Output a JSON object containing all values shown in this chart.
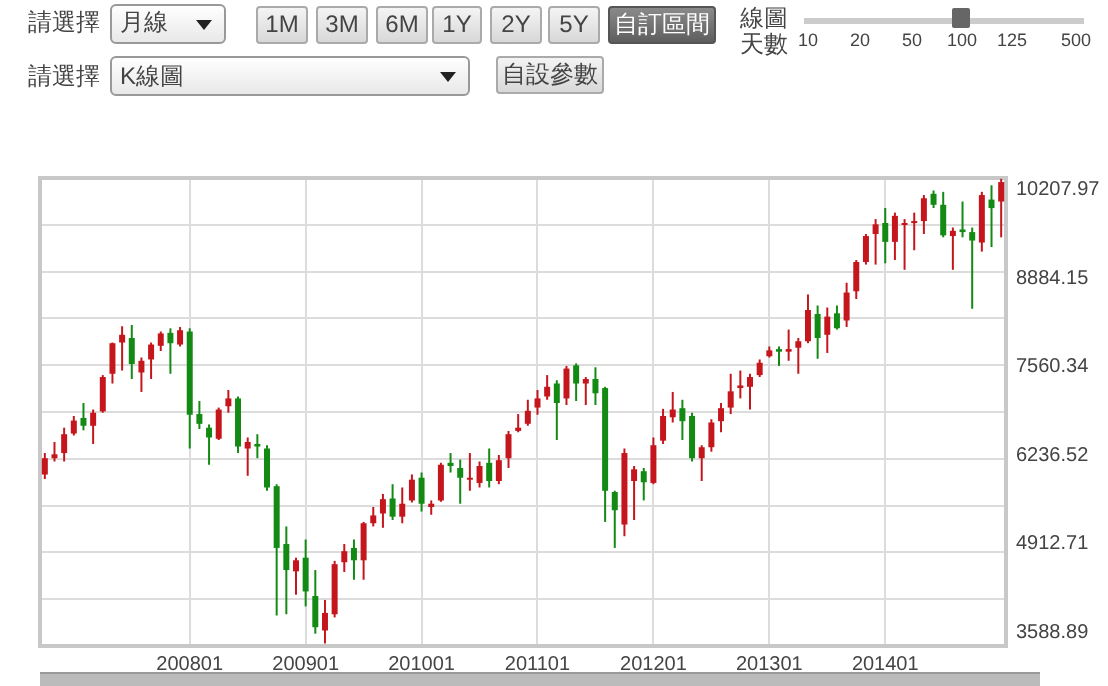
{
  "chart_data": {
    "type": "candlestick",
    "categories": [
      null,
      null,
      null,
      null,
      null,
      null,
      null,
      null,
      null,
      null,
      null,
      null,
      null,
      null,
      null,
      "200801",
      null,
      null,
      null,
      null,
      null,
      null,
      null,
      null,
      null,
      null,
      null,
      "200901",
      null,
      null,
      null,
      null,
      null,
      null,
      null,
      null,
      null,
      null,
      null,
      "201001",
      null,
      null,
      null,
      null,
      null,
      null,
      null,
      null,
      null,
      null,
      null,
      "201101",
      null,
      null,
      null,
      null,
      null,
      null,
      null,
      null,
      null,
      null,
      null,
      "201201",
      null,
      null,
      null,
      null,
      null,
      null,
      null,
      null,
      null,
      null,
      null,
      "201301",
      null,
      null,
      null,
      null,
      null,
      null,
      null,
      null,
      null,
      null,
      null,
      "201401",
      null,
      null,
      null,
      null,
      null,
      null,
      null,
      null,
      null,
      null,
      null,
      null
    ],
    "ohlc": [
      [
        5950,
        6271,
        5882,
        6194
      ],
      [
        6194,
        6436,
        6145,
        6252
      ],
      [
        6271,
        6650,
        6145,
        6553
      ],
      [
        6563,
        6825,
        6534,
        6757
      ],
      [
        6796,
        7019,
        6611,
        6679
      ],
      [
        6679,
        6922,
        6407,
        6874
      ],
      [
        6893,
        7437,
        6874,
        7408
      ],
      [
        7457,
        7924,
        7311,
        7914
      ],
      [
        7924,
        8167,
        7505,
        8040
      ],
      [
        7992,
        8186,
        7379,
        7603
      ],
      [
        7476,
        7700,
        7185,
        7651
      ],
      [
        7671,
        7924,
        7379,
        7894
      ],
      [
        7875,
        8089,
        7797,
        8060
      ],
      [
        8069,
        8137,
        7457,
        7914
      ],
      [
        7894,
        8157,
        7865,
        8108
      ],
      [
        8089,
        8137,
        6339,
        6844
      ],
      [
        6854,
        7049,
        6631,
        6708
      ],
      [
        6650,
        6699,
        6096,
        6504
      ],
      [
        6485,
        6951,
        6466,
        6922
      ],
      [
        6971,
        7214,
        6874,
        7088
      ],
      [
        7088,
        7117,
        6271,
        6368
      ],
      [
        6339,
        6504,
        5931,
        6436
      ],
      [
        6407,
        6553,
        6194,
        6368
      ],
      [
        6339,
        6388,
        5707,
        5756
      ],
      [
        5775,
        5805,
        3841,
        4852
      ],
      [
        4910,
        5173,
        3860,
        4521
      ],
      [
        4502,
        4706,
        4152,
        4667
      ],
      [
        4706,
        4978,
        3977,
        4201
      ],
      [
        4133,
        4521,
        3569,
        3666
      ],
      [
        3617,
        4074,
        3423,
        3880
      ],
      [
        3860,
        4658,
        3812,
        4609
      ],
      [
        4638,
        4910,
        4492,
        4803
      ],
      [
        4852,
        4978,
        4376,
        4667
      ],
      [
        4667,
        5241,
        4376,
        5221
      ],
      [
        5221,
        5464,
        5173,
        5338
      ],
      [
        5367,
        5659,
        5153,
        5581
      ],
      [
        5591,
        5805,
        5270,
        5319
      ],
      [
        5319,
        5756,
        5221,
        5513
      ],
      [
        5562,
        5951,
        5532,
        5873
      ],
      [
        5902,
        5980,
        5396,
        5513
      ],
      [
        5464,
        5562,
        5348,
        5513
      ],
      [
        5562,
        6125,
        5542,
        6096
      ],
      [
        6125,
        6271,
        5980,
        6077
      ],
      [
        6048,
        6174,
        5513,
        5902
      ],
      [
        5873,
        6271,
        5707,
        5902
      ],
      [
        5824,
        6145,
        5756,
        6077
      ],
      [
        6125,
        6339,
        5756,
        5853
      ],
      [
        5853,
        6242,
        5805,
        6164
      ],
      [
        6194,
        6602,
        6048,
        6553
      ],
      [
        6602,
        6854,
        6582,
        6650
      ],
      [
        6709,
        7068,
        6679,
        6903
      ],
      [
        6951,
        7214,
        6844,
        7088
      ],
      [
        7117,
        7437,
        7068,
        7262
      ],
      [
        7311,
        7360,
        6466,
        7020
      ],
      [
        7088,
        7574,
        6990,
        7535
      ],
      [
        7583,
        7612,
        7049,
        7311
      ],
      [
        7311,
        7408,
        6990,
        7379
      ],
      [
        7379,
        7554,
        6990,
        7165
      ],
      [
        7243,
        7262,
        5241,
        5707
      ],
      [
        5688,
        5707,
        4852,
        5416
      ],
      [
        5202,
        6339,
        5027,
        6271
      ],
      [
        5853,
        6077,
        5270,
        6028
      ],
      [
        5999,
        6048,
        5562,
        5834
      ],
      [
        5824,
        6504,
        5805,
        6388
      ],
      [
        6456,
        6932,
        6407,
        6825
      ],
      [
        6806,
        7185,
        6728,
        6922
      ],
      [
        6942,
        7068,
        6466,
        6748
      ],
      [
        6825,
        6874,
        6145,
        6194
      ],
      [
        6194,
        6388,
        5853,
        6358
      ],
      [
        6358,
        6777,
        6291,
        6728
      ],
      [
        6748,
        7019,
        6582,
        6942
      ],
      [
        6951,
        7457,
        6854,
        7194
      ],
      [
        7243,
        7505,
        7088,
        7282
      ],
      [
        7262,
        7457,
        6922,
        7408
      ],
      [
        7437,
        7671,
        7408,
        7622
      ],
      [
        7719,
        7865,
        7700,
        7807
      ],
      [
        7826,
        7865,
        7574,
        7787
      ],
      [
        7787,
        8118,
        7651,
        7826
      ],
      [
        7846,
        7992,
        7457,
        7943
      ],
      [
        7943,
        8643,
        7914,
        8410
      ],
      [
        8351,
        8478,
        7681,
        7992
      ],
      [
        8040,
        8448,
        7768,
        8312
      ],
      [
        8361,
        8478,
        8118,
        8138
      ],
      [
        8254,
        8818,
        8157,
        8672
      ],
      [
        8691,
        9158,
        8575,
        9129
      ],
      [
        9129,
        9547,
        9090,
        9517
      ],
      [
        9547,
        9770,
        9090,
        9692
      ],
      [
        9712,
        9936,
        9109,
        9430
      ],
      [
        9430,
        9867,
        9158,
        9819
      ],
      [
        9692,
        9770,
        9012,
        9712
      ],
      [
        9712,
        9867,
        9304,
        9741
      ],
      [
        9741,
        10130,
        9547,
        10082
      ],
      [
        10149,
        10198,
        9936,
        9984
      ],
      [
        9984,
        10178,
        9498,
        9527
      ],
      [
        9517,
        9644,
        9012,
        9595
      ],
      [
        9615,
        10033,
        9498,
        9576
      ],
      [
        9576,
        9644,
        8429,
        9449
      ],
      [
        9420,
        10178,
        9284,
        10130
      ],
      [
        10062,
        10276,
        9352,
        9935
      ],
      [
        10033,
        10373,
        9498,
        10324
      ]
    ],
    "colors": [
      "#c4161c",
      "#c4161c",
      "#c4161c",
      "#c4161c",
      "#138a13",
      "#c4161c",
      "#c4161c",
      "#c4161c",
      "#c4161c",
      "#138a13",
      "#c4161c",
      "#c4161c",
      "#c4161c",
      "#138a13",
      "#c4161c",
      "#138a13",
      "#138a13",
      "#138a13",
      "#c4161c",
      "#c4161c",
      "#138a13",
      "#c4161c",
      "#138a13",
      "#138a13",
      "#138a13",
      "#138a13",
      "#c4161c",
      "#138a13",
      "#138a13",
      "#c4161c",
      "#c4161c",
      "#c4161c",
      "#138a13",
      "#c4161c",
      "#c4161c",
      "#c4161c",
      "#138a13",
      "#c4161c",
      "#c4161c",
      "#138a13",
      "#c4161c",
      "#c4161c",
      "#138a13",
      "#138a13",
      "#c4161c",
      "#c4161c",
      "#138a13",
      "#c4161c",
      "#c4161c",
      "#c4161c",
      "#c4161c",
      "#c4161c",
      "#c4161c",
      "#138a13",
      "#c4161c",
      "#138a13",
      "#c4161c",
      "#138a13",
      "#138a13",
      "#138a13",
      "#c4161c",
      "#c4161c",
      "#138a13",
      "#c4161c",
      "#c4161c",
      "#c4161c",
      "#138a13",
      "#138a13",
      "#c4161c",
      "#c4161c",
      "#c4161c",
      "#c4161c",
      "#c4161c",
      "#c4161c",
      "#c4161c",
      "#c4161c",
      "#138a13",
      "#c4161c",
      "#c4161c",
      "#c4161c",
      "#138a13",
      "#c4161c",
      "#138a13",
      "#c4161c",
      "#c4161c",
      "#c4161c",
      "#c4161c",
      "#138a13",
      "#c4161c",
      "#c4161c",
      "#c4161c",
      "#c4161c",
      "#138a13",
      "#138a13",
      "#c4161c",
      "#138a13",
      "#138a13",
      "#c4161c",
      "#138a13",
      "#c4161c"
    ],
    "ylim": [
      3385,
      10385
    ],
    "yticks": [
      3588.89,
      {
        "value": 4085,
        "label": null
      },
      {
        "value": 4785,
        "label": null
      },
      4912.71,
      {
        "value": 5485,
        "label": null
      },
      {
        "value": 6185,
        "label": null
      },
      6236.52,
      {
        "value": 6885,
        "label": null
      },
      7560.34,
      {
        "value": 7585,
        "label": null
      },
      {
        "value": 8285,
        "label": null
      },
      8884.15,
      {
        "value": 8985,
        "label": null
      },
      {
        "value": 9685,
        "label": null
      },
      10207.97
    ],
    "grid": true,
    "annotations": [
      "請選擇",
      "月線",
      "1M",
      "3M",
      "6M",
      "1Y",
      "2Y",
      "5Y",
      "自訂區間",
      "線圖",
      "天數",
      "10",
      "20",
      "50",
      "100",
      "125",
      "500",
      "請選擇",
      "K線圖",
      "自設參數"
    ]
  }
}
